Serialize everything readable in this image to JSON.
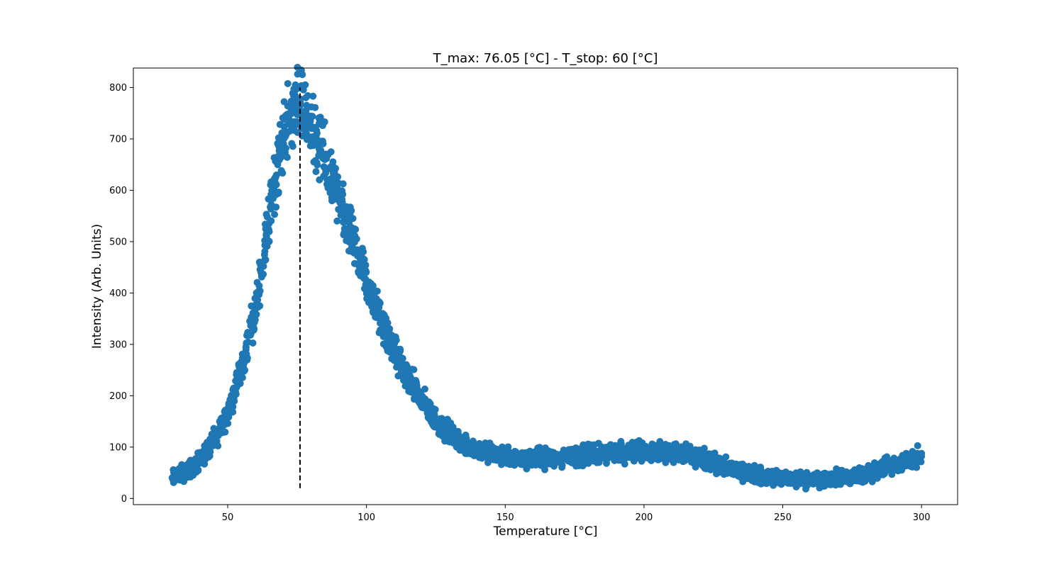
{
  "chart_data": {
    "type": "scatter",
    "title": "T_max: 76.05 [°C] - T_stop: 60 [°C]",
    "xlabel": "Temperature [°C]",
    "ylabel": "Intensity (Arb. Units)",
    "xlim": [
      16,
      313
    ],
    "ylim": [
      -12,
      838
    ],
    "xticks": [
      50,
      100,
      150,
      200,
      250,
      300
    ],
    "yticks": [
      0,
      100,
      200,
      300,
      400,
      500,
      600,
      700,
      800
    ],
    "grid": false,
    "legend": "none",
    "marker_color": "#1f77b4",
    "series": [
      {
        "x": [
          30,
          32,
          34,
          36,
          38,
          40,
          42,
          44,
          46,
          48,
          50,
          52,
          54,
          56,
          58,
          60,
          62,
          64,
          66,
          68,
          70,
          72,
          74,
          76,
          78,
          80,
          82,
          84,
          86,
          88,
          90,
          92,
          94,
          96,
          98,
          100,
          102,
          104,
          106,
          108,
          110,
          112,
          114,
          116,
          118,
          120,
          122,
          124,
          126,
          128,
          130,
          132,
          134,
          136,
          138,
          140,
          142,
          144,
          146,
          148,
          150,
          152,
          154,
          156,
          158,
          160,
          165,
          170,
          175,
          180,
          185,
          190,
          195,
          200,
          205,
          210,
          215,
          220,
          225,
          230,
          235,
          240,
          245,
          250,
          255,
          260,
          265,
          270,
          275,
          280,
          285,
          290,
          295,
          300
        ],
        "y": [
          40,
          45,
          50,
          56,
          64,
          75,
          88,
          103,
          122,
          145,
          170,
          200,
          235,
          275,
          320,
          375,
          440,
          510,
          585,
          650,
          705,
          740,
          760,
          765,
          750,
          725,
          700,
          672,
          642,
          612,
          580,
          548,
          516,
          484,
          452,
          420,
          392,
          364,
          336,
          310,
          286,
          264,
          244,
          225,
          207,
          190,
          174,
          160,
          148,
          136,
          126,
          118,
          111,
          105,
          100,
          96,
          92,
          89,
          86,
          84,
          82,
          80,
          79,
          78,
          78,
          78,
          79,
          80,
          82,
          84,
          87,
          90,
          92,
          93,
          92,
          90,
          85,
          78,
          70,
          60,
          52,
          46,
          42,
          40,
          38,
          37,
          38,
          40,
          43,
          48,
          56,
          65,
          74,
          82
        ]
      }
    ],
    "vline": {
      "x": 76.05,
      "y_from": 20,
      "y_to": 800,
      "style": "dashed",
      "color": "#000000"
    }
  }
}
